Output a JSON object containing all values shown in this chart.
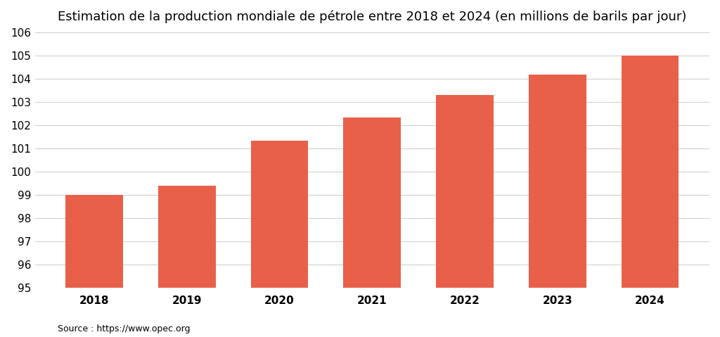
{
  "title": "Estimation de la production mondiale de pétrole entre 2018 et 2024 (en millions de barils par jour)",
  "categories": [
    "2018",
    "2019",
    "2020",
    "2021",
    "2022",
    "2023",
    "2024"
  ],
  "values": [
    99.0,
    99.4,
    101.35,
    102.35,
    103.3,
    104.2,
    105.0
  ],
  "bar_color": "#E8604A",
  "ylim_min": 95,
  "ylim_max": 106,
  "yticks": [
    95,
    96,
    97,
    98,
    99,
    100,
    101,
    102,
    103,
    104,
    105,
    106
  ],
  "background_color": "#ffffff",
  "source_text": "Source : https://www.opec.org",
  "title_fontsize": 13,
  "tick_fontsize": 11,
  "source_fontsize": 9,
  "bar_width": 0.62
}
